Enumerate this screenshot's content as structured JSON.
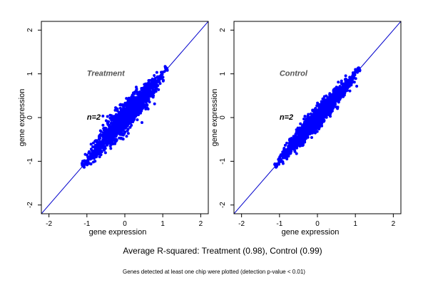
{
  "caption": "Average R-squared: Treatment (0.98), Control (0.99)",
  "footnote": "Genes detected at least one chip were plotted (detection p-value < 0.01)",
  "colors": {
    "points": "#0000ff",
    "identity_line": "#0000cc",
    "axis": "#000000"
  },
  "chart_data": [
    {
      "type": "scatter",
      "title": "Treatment",
      "annotation": "n=2",
      "xlabel": "gene expression",
      "ylabel": "gene expression",
      "xlim": [
        -2.2,
        2.2
      ],
      "ylim": [
        -2.2,
        2.2
      ],
      "xticks": [
        "-2",
        "-1",
        "0",
        "1",
        "2"
      ],
      "yticks": [
        "-2",
        "-1",
        "0",
        "1",
        "2"
      ],
      "reference_line": "y = x",
      "cloud": {
        "x_range": [
          -1.1,
          1.1
        ],
        "spread": 0.16
      },
      "points_approx": [
        [
          -1.1,
          -1.08
        ],
        [
          -0.9,
          -0.85
        ],
        [
          -0.6,
          -0.55
        ],
        [
          -0.3,
          -0.3
        ],
        [
          0,
          0
        ],
        [
          0.3,
          0.32
        ],
        [
          0.6,
          0.55
        ],
        [
          0.9,
          0.88
        ],
        [
          1.1,
          1.12
        ]
      ]
    },
    {
      "type": "scatter",
      "title": "Control",
      "annotation": "n=2",
      "xlabel": "gene expression",
      "ylabel": "gene expression",
      "xlim": [
        -2.2,
        2.2
      ],
      "ylim": [
        -2.2,
        2.2
      ],
      "xticks": [
        "-2",
        "-1",
        "0",
        "1",
        "2"
      ],
      "yticks": [
        "-2",
        "-1",
        "0",
        "1",
        "2"
      ],
      "reference_line": "y = x",
      "cloud": {
        "x_range": [
          -1.1,
          1.1
        ],
        "spread": 0.12
      },
      "points_approx": [
        [
          -1.1,
          -1.1
        ],
        [
          -0.9,
          -0.88
        ],
        [
          -0.6,
          -0.58
        ],
        [
          -0.3,
          -0.32
        ],
        [
          0,
          0
        ],
        [
          0.3,
          0.3
        ],
        [
          0.6,
          0.6
        ],
        [
          0.9,
          0.92
        ],
        [
          1.1,
          1.12
        ]
      ]
    }
  ]
}
